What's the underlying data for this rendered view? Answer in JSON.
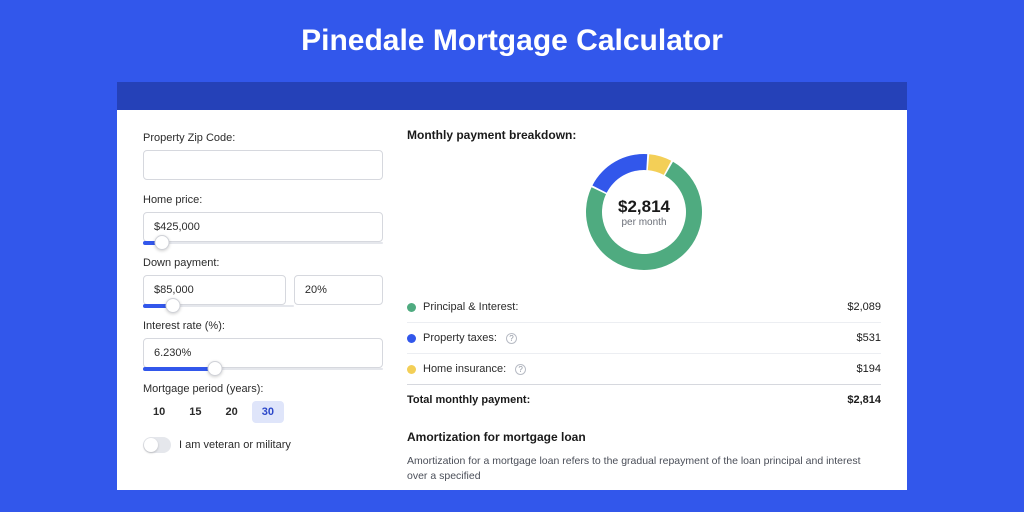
{
  "page": {
    "title": "Pinedale Mortgage Calculator",
    "background_color": "#3257eb",
    "dark_bar_color": "#2541b8"
  },
  "form": {
    "zip": {
      "label": "Property Zip Code:",
      "value": ""
    },
    "home_price": {
      "label": "Home price:",
      "value": "$425,000",
      "slider_pct": 8
    },
    "down_payment": {
      "label": "Down payment:",
      "value": "$85,000",
      "pct_value": "20%",
      "slider_pct": 20
    },
    "interest_rate": {
      "label": "Interest rate (%):",
      "value": "6.230%",
      "slider_pct": 30
    },
    "period": {
      "label": "Mortgage period (years):",
      "options": [
        "10",
        "15",
        "20",
        "30"
      ],
      "active_index": 3
    },
    "veteran": {
      "label": "I am veteran or military",
      "on": false
    }
  },
  "breakdown": {
    "title": "Monthly payment breakdown:",
    "donut": {
      "value": "$2,814",
      "sub": "per month",
      "segments": [
        {
          "label": "Principal & Interest:",
          "value": "$2,089",
          "amount": 2089,
          "color": "#4fab80",
          "has_help": false
        },
        {
          "label": "Property taxes:",
          "value": "$531",
          "amount": 531,
          "color": "#3257eb",
          "has_help": true
        },
        {
          "label": "Home insurance:",
          "value": "$194",
          "amount": 194,
          "color": "#f3cf57",
          "has_help": true
        }
      ],
      "total": 2814,
      "start_angle_deg": -60,
      "gap_deg": 2,
      "thickness": 16
    },
    "total_label": "Total monthly payment:",
    "total_value": "$2,814"
  },
  "amortization": {
    "title": "Amortization for mortgage loan",
    "text": "Amortization for a mortgage loan refers to the gradual repayment of the loan principal and interest over a specified"
  }
}
